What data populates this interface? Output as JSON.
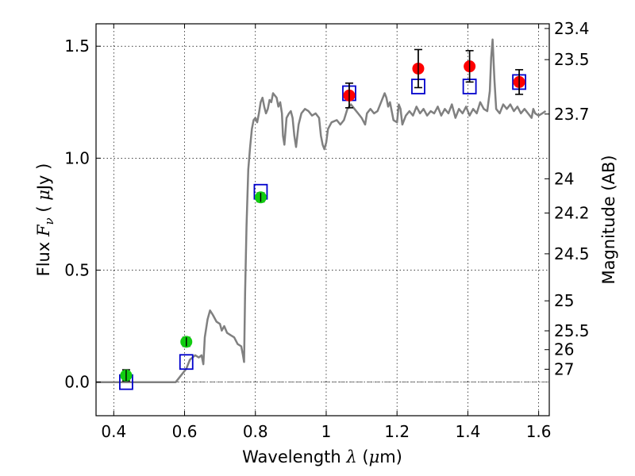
{
  "chart_data": {
    "type": "scatter",
    "xlabel": "Wavelength  λ (μm)",
    "xlabel_parts": [
      "Wavelength  ",
      "λ",
      " (",
      "μ",
      "m)"
    ],
    "ylabel": "Flux  F_ν  ( μJy )",
    "ylabel_parts": [
      "Flux  ",
      "F",
      "ν",
      "  ( ",
      "μ",
      "Jy )"
    ],
    "y2label": "Magnitude (AB)",
    "xlim": [
      0.35,
      1.63
    ],
    "ylim": [
      -0.15,
      1.6
    ],
    "grid": true,
    "grid_style": "dotted",
    "x_ticks": [
      0.4,
      0.6,
      0.8,
      1.0,
      1.2,
      1.4,
      1.6
    ],
    "x_tick_labels": [
      "0.4",
      "0.6",
      "0.8",
      "1",
      "1.2",
      "1.4",
      "1.6"
    ],
    "y_ticks": [
      0.0,
      0.5,
      1.0,
      1.5
    ],
    "y_tick_labels": [
      "0.0",
      "0.5",
      "1.0",
      "1.5"
    ],
    "y2_ticks": [
      {
        "label": "23.4",
        "flux": 1.579
      },
      {
        "label": "23.5",
        "flux": 1.44
      },
      {
        "label": "23.7",
        "flux": 1.197
      },
      {
        "label": "24",
        "flux": 0.908
      },
      {
        "label": "24.2",
        "flux": 0.755
      },
      {
        "label": "24.5",
        "flux": 0.573
      },
      {
        "label": "25",
        "flux": 0.363
      },
      {
        "label": "25.5",
        "flux": 0.229
      },
      {
        "label": "26",
        "flux": 0.145
      },
      {
        "label": "27",
        "flux": 0.0575
      }
    ],
    "zero_line": {
      "y": 0.0,
      "style": "dashdot",
      "color": "#555555"
    },
    "series": [
      {
        "kind": "line",
        "color": "#808080",
        "points": [
          [
            0.35,
            0.0
          ],
          [
            0.56,
            0.0
          ],
          [
            0.575,
            0.0
          ],
          [
            0.59,
            0.03
          ],
          [
            0.605,
            0.06
          ],
          [
            0.615,
            0.1
          ],
          [
            0.63,
            0.12
          ],
          [
            0.64,
            0.11
          ],
          [
            0.648,
            0.12
          ],
          [
            0.653,
            0.08
          ],
          [
            0.657,
            0.2
          ],
          [
            0.665,
            0.28
          ],
          [
            0.672,
            0.32
          ],
          [
            0.68,
            0.3
          ],
          [
            0.69,
            0.27
          ],
          [
            0.7,
            0.26
          ],
          [
            0.705,
            0.23
          ],
          [
            0.712,
            0.25
          ],
          [
            0.72,
            0.22
          ],
          [
            0.73,
            0.21
          ],
          [
            0.74,
            0.2
          ],
          [
            0.75,
            0.17
          ],
          [
            0.76,
            0.16
          ],
          [
            0.765,
            0.12
          ],
          [
            0.768,
            0.09
          ],
          [
            0.771,
            0.4
          ],
          [
            0.775,
            0.7
          ],
          [
            0.78,
            0.95
          ],
          [
            0.785,
            1.05
          ],
          [
            0.79,
            1.13
          ],
          [
            0.795,
            1.17
          ],
          [
            0.8,
            1.18
          ],
          [
            0.805,
            1.16
          ],
          [
            0.81,
            1.2
          ],
          [
            0.815,
            1.25
          ],
          [
            0.82,
            1.27
          ],
          [
            0.825,
            1.23
          ],
          [
            0.83,
            1.2
          ],
          [
            0.835,
            1.22
          ],
          [
            0.84,
            1.26
          ],
          [
            0.845,
            1.25
          ],
          [
            0.85,
            1.29
          ],
          [
            0.86,
            1.27
          ],
          [
            0.865,
            1.23
          ],
          [
            0.87,
            1.25
          ],
          [
            0.875,
            1.2
          ],
          [
            0.878,
            1.1
          ],
          [
            0.882,
            1.06
          ],
          [
            0.888,
            1.18
          ],
          [
            0.895,
            1.2
          ],
          [
            0.9,
            1.21
          ],
          [
            0.905,
            1.18
          ],
          [
            0.91,
            1.1
          ],
          [
            0.915,
            1.05
          ],
          [
            0.922,
            1.15
          ],
          [
            0.93,
            1.2
          ],
          [
            0.94,
            1.22
          ],
          [
            0.95,
            1.21
          ],
          [
            0.96,
            1.19
          ],
          [
            0.97,
            1.2
          ],
          [
            0.98,
            1.18
          ],
          [
            0.985,
            1.1
          ],
          [
            0.99,
            1.06
          ],
          [
            0.995,
            1.04
          ],
          [
            1.0,
            1.07
          ],
          [
            1.005,
            1.13
          ],
          [
            1.015,
            1.16
          ],
          [
            1.03,
            1.17
          ],
          [
            1.04,
            1.15
          ],
          [
            1.05,
            1.17
          ],
          [
            1.06,
            1.22
          ],
          [
            1.07,
            1.24
          ],
          [
            1.08,
            1.22
          ],
          [
            1.09,
            1.2
          ],
          [
            1.1,
            1.18
          ],
          [
            1.11,
            1.15
          ],
          [
            1.115,
            1.2
          ],
          [
            1.125,
            1.22
          ],
          [
            1.135,
            1.2
          ],
          [
            1.145,
            1.21
          ],
          [
            1.155,
            1.25
          ],
          [
            1.165,
            1.29
          ],
          [
            1.17,
            1.27
          ],
          [
            1.175,
            1.23
          ],
          [
            1.18,
            1.25
          ],
          [
            1.19,
            1.17
          ],
          [
            1.2,
            1.16
          ],
          [
            1.205,
            1.24
          ],
          [
            1.21,
            1.22
          ],
          [
            1.215,
            1.15
          ],
          [
            1.225,
            1.19
          ],
          [
            1.235,
            1.21
          ],
          [
            1.245,
            1.19
          ],
          [
            1.255,
            1.23
          ],
          [
            1.265,
            1.2
          ],
          [
            1.275,
            1.22
          ],
          [
            1.285,
            1.19
          ],
          [
            1.295,
            1.21
          ],
          [
            1.305,
            1.2
          ],
          [
            1.315,
            1.23
          ],
          [
            1.325,
            1.19
          ],
          [
            1.335,
            1.22
          ],
          [
            1.345,
            1.2
          ],
          [
            1.355,
            1.24
          ],
          [
            1.365,
            1.18
          ],
          [
            1.375,
            1.22
          ],
          [
            1.385,
            1.2
          ],
          [
            1.395,
            1.23
          ],
          [
            1.405,
            1.19
          ],
          [
            1.415,
            1.22
          ],
          [
            1.425,
            1.2
          ],
          [
            1.435,
            1.25
          ],
          [
            1.445,
            1.22
          ],
          [
            1.455,
            1.21
          ],
          [
            1.462,
            1.3
          ],
          [
            1.466,
            1.45
          ],
          [
            1.47,
            1.53
          ],
          [
            1.475,
            1.35
          ],
          [
            1.48,
            1.22
          ],
          [
            1.49,
            1.2
          ],
          [
            1.5,
            1.24
          ],
          [
            1.51,
            1.22
          ],
          [
            1.52,
            1.24
          ],
          [
            1.53,
            1.21
          ],
          [
            1.54,
            1.23
          ],
          [
            1.55,
            1.2
          ],
          [
            1.56,
            1.22
          ],
          [
            1.57,
            1.2
          ],
          [
            1.58,
            1.18
          ],
          [
            1.585,
            1.22
          ],
          [
            1.59,
            1.2
          ],
          [
            1.6,
            1.19
          ],
          [
            1.61,
            1.2
          ],
          [
            1.62,
            1.21
          ]
        ]
      },
      {
        "kind": "model",
        "marker": "open-square",
        "color": "#0000cc",
        "x": [
          0.435,
          0.605,
          0.815,
          1.065,
          1.26,
          1.405,
          1.545
        ],
        "y": [
          0.0,
          0.09,
          0.85,
          1.29,
          1.32,
          1.32,
          1.34
        ]
      },
      {
        "kind": "observed-optical",
        "marker": "filled-circle",
        "color": "#11cc11",
        "x": [
          0.435,
          0.605,
          0.815
        ],
        "y": [
          0.03,
          0.18,
          0.825
        ],
        "yerr": [
          0.025,
          0.02,
          0.02
        ]
      },
      {
        "kind": "observed-nir",
        "marker": "filled-circle",
        "color": "#ff0000",
        "x": [
          1.065,
          1.26,
          1.405,
          1.545
        ],
        "y": [
          1.28,
          1.4,
          1.41,
          1.34
        ],
        "yerr": [
          0.055,
          0.085,
          0.07,
          0.055
        ]
      }
    ]
  }
}
